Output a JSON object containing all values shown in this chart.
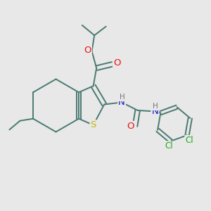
{
  "bg_color": "#e8e8e8",
  "bond_color": "#4a7a70",
  "bond_width": 1.4,
  "atom_colors": {
    "O": "#ee1111",
    "N": "#1111cc",
    "S": "#bbbb00",
    "Cl": "#22aa22",
    "H": "#777777",
    "C": "#4a7a70"
  },
  "font_size": 8.5,
  "fig_width": 3.0,
  "fig_height": 3.0,
  "dpi": 100
}
